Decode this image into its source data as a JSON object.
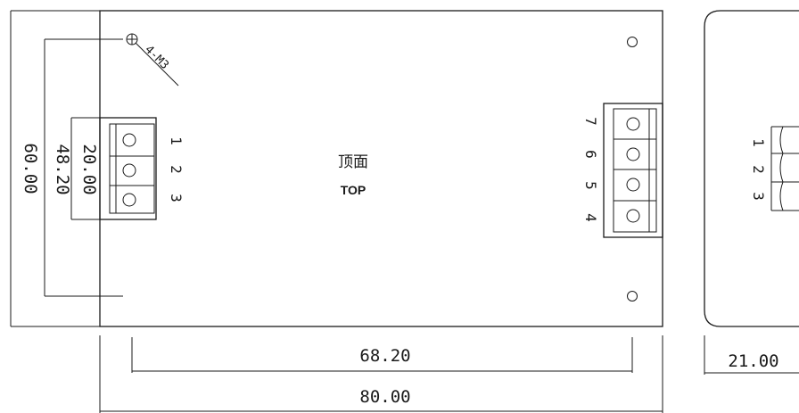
{
  "top_view": {
    "label_cn": "顶面",
    "label_en": "TOP",
    "hole_label": "4-M3"
  },
  "dimensions": {
    "width": "80.00",
    "hole_spacing_x": "68.20",
    "height": "60.00",
    "hole_spacing_y": "48.20",
    "terminal_span": "20.00",
    "side_depth": "21.00"
  },
  "left_terminal": {
    "pins": [
      "1",
      "2",
      "3"
    ]
  },
  "right_terminal": {
    "pins": [
      "7",
      "6",
      "5",
      "4"
    ]
  },
  "side_view": {
    "pins": [
      "1",
      "2",
      "3"
    ]
  }
}
